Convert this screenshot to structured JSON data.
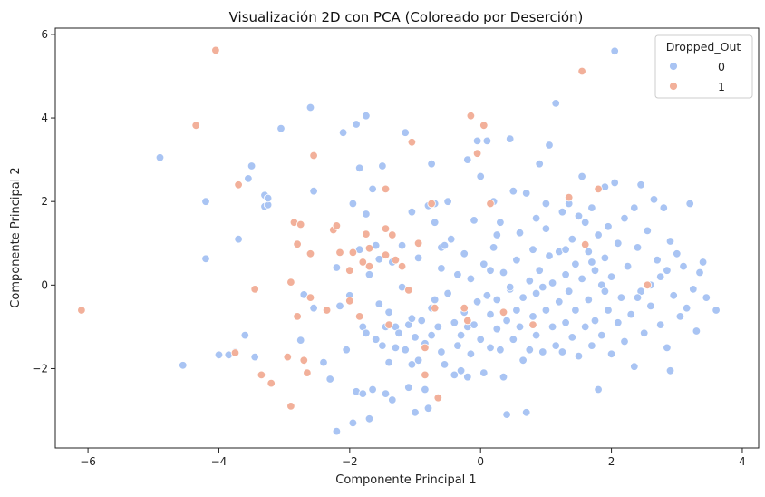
{
  "chart_data": {
    "type": "scatter",
    "title": "Visualización 2D con PCA (Coloreado por Deserción)",
    "xlabel": "Componente Principal 1",
    "ylabel": "Componente Principal 2",
    "xlim": [
      -6.5,
      4.25
    ],
    "ylim": [
      -3.9,
      6.15
    ],
    "xticks": [
      -6,
      -4,
      -2,
      0,
      2,
      4
    ],
    "yticks": [
      -2,
      0,
      2,
      4,
      6
    ],
    "grid": false,
    "legend": {
      "title": "Dropped_Out",
      "placement": "top-right"
    },
    "series": [
      {
        "name": "0",
        "color": "#a9c4f3",
        "points": [
          [
            -4.9,
            3.05
          ],
          [
            -4.55,
            -1.92
          ],
          [
            -4.2,
            2.0
          ],
          [
            -4.2,
            0.63
          ],
          [
            -4.0,
            -1.67
          ],
          [
            -3.85,
            -1.67
          ],
          [
            -3.75,
            -1.6
          ],
          [
            -3.7,
            1.1
          ],
          [
            -3.6,
            -1.2
          ],
          [
            -3.55,
            2.55
          ],
          [
            -3.5,
            2.85
          ],
          [
            -3.45,
            -1.72
          ],
          [
            -3.3,
            2.15
          ],
          [
            -3.3,
            1.88
          ],
          [
            -3.25,
            1.92
          ],
          [
            -3.25,
            2.08
          ],
          [
            -3.05,
            3.75
          ],
          [
            -2.75,
            -1.32
          ],
          [
            -2.7,
            -0.23
          ],
          [
            -2.6,
            4.25
          ],
          [
            -2.55,
            2.25
          ],
          [
            -2.55,
            -0.55
          ],
          [
            -2.4,
            -1.85
          ],
          [
            -2.3,
            -2.25
          ],
          [
            -2.2,
            -3.5
          ],
          [
            -2.2,
            0.42
          ],
          [
            -2.15,
            -0.5
          ],
          [
            -2.1,
            3.65
          ],
          [
            -2.05,
            -1.55
          ],
          [
            -2.0,
            -0.25
          ],
          [
            -1.95,
            -3.3
          ],
          [
            -1.95,
            1.95
          ],
          [
            -1.9,
            3.85
          ],
          [
            -1.9,
            -2.55
          ],
          [
            -1.85,
            2.8
          ],
          [
            -1.85,
            0.85
          ],
          [
            -1.8,
            -2.6
          ],
          [
            -1.8,
            -1.0
          ],
          [
            -1.75,
            1.7
          ],
          [
            -1.75,
            -1.15
          ],
          [
            -1.75,
            4.05
          ],
          [
            -1.7,
            -3.2
          ],
          [
            -1.7,
            0.25
          ],
          [
            -1.65,
            2.3
          ],
          [
            -1.65,
            -2.5
          ],
          [
            -1.6,
            -1.3
          ],
          [
            -1.6,
            0.95
          ],
          [
            -1.55,
            0.62
          ],
          [
            -1.55,
            -0.45
          ],
          [
            -1.5,
            -1.45
          ],
          [
            -1.5,
            2.85
          ],
          [
            -1.45,
            -2.6
          ],
          [
            -1.45,
            -1.0
          ],
          [
            -1.4,
            -0.65
          ],
          [
            -1.4,
            -1.85
          ],
          [
            -1.35,
            0.55
          ],
          [
            -1.35,
            -2.75
          ],
          [
            -1.3,
            -1.0
          ],
          [
            -1.3,
            -1.5
          ],
          [
            -1.25,
            -1.15
          ],
          [
            -1.2,
            0.95
          ],
          [
            -1.2,
            -0.05
          ],
          [
            -1.15,
            3.65
          ],
          [
            -1.15,
            -1.55
          ],
          [
            -1.1,
            -0.95
          ],
          [
            -1.1,
            -2.45
          ],
          [
            -1.05,
            1.75
          ],
          [
            -1.05,
            -0.8
          ],
          [
            -1.0,
            -3.05
          ],
          [
            -1.0,
            -1.25
          ],
          [
            -0.95,
            0.65
          ],
          [
            -0.95,
            -1.8
          ],
          [
            -0.9,
            -0.85
          ],
          [
            -0.85,
            -2.5
          ],
          [
            -0.85,
            -1.4
          ],
          [
            -0.8,
            -2.95
          ],
          [
            -0.8,
            1.9
          ],
          [
            -0.75,
            2.9
          ],
          [
            -0.75,
            -0.55
          ],
          [
            -0.75,
            -1.2
          ],
          [
            -0.7,
            1.95
          ],
          [
            -0.7,
            -0.35
          ],
          [
            -0.7,
            1.5
          ],
          [
            -0.65,
            -1.0
          ],
          [
            -0.6,
            -1.6
          ],
          [
            -0.6,
            0.4
          ],
          [
            -0.55,
            -1.9
          ],
          [
            -0.5,
            -0.2
          ],
          [
            -0.5,
            2.0
          ],
          [
            -0.45,
            1.1
          ],
          [
            -0.4,
            -2.15
          ],
          [
            -0.4,
            -0.9
          ],
          [
            -0.35,
            -1.45
          ],
          [
            -0.35,
            0.25
          ],
          [
            -0.3,
            -2.05
          ],
          [
            -0.3,
            -1.2
          ],
          [
            -0.25,
            -0.65
          ],
          [
            -0.2,
            -2.2
          ],
          [
            -0.2,
            3.0
          ],
          [
            -0.2,
            -1.0
          ],
          [
            -0.15,
            0.15
          ],
          [
            -0.15,
            -1.65
          ],
          [
            -0.1,
            1.55
          ],
          [
            -0.1,
            -0.95
          ],
          [
            -0.05,
            3.45
          ],
          [
            -0.05,
            -0.4
          ],
          [
            0.0,
            -1.3
          ],
          [
            0.0,
            2.6
          ],
          [
            0.05,
            -2.1
          ],
          [
            0.05,
            0.5
          ],
          [
            0.1,
            -0.25
          ],
          [
            0.1,
            3.45
          ],
          [
            0.15,
            -1.5
          ],
          [
            0.15,
            -0.7
          ],
          [
            0.2,
            2.0
          ],
          [
            0.2,
            0.9
          ],
          [
            0.25,
            -1.05
          ],
          [
            0.25,
            -0.35
          ],
          [
            0.3,
            -1.55
          ],
          [
            0.3,
            1.5
          ],
          [
            0.35,
            -2.2
          ],
          [
            0.35,
            0.3
          ],
          [
            0.4,
            -3.1
          ],
          [
            0.4,
            -0.85
          ],
          [
            0.45,
            3.5
          ],
          [
            0.45,
            -0.1
          ],
          [
            0.5,
            -1.3
          ],
          [
            0.5,
            2.25
          ],
          [
            0.55,
            0.6
          ],
          [
            0.55,
            -0.6
          ],
          [
            0.6,
            -1.0
          ],
          [
            0.6,
            1.25
          ],
          [
            0.65,
            -1.8
          ],
          [
            0.65,
            -0.3
          ],
          [
            0.7,
            -3.05
          ],
          [
            0.7,
            2.2
          ],
          [
            0.75,
            0.1
          ],
          [
            0.75,
            -1.55
          ],
          [
            0.8,
            0.85
          ],
          [
            0.8,
            -0.75
          ],
          [
            0.85,
            1.6
          ],
          [
            0.85,
            -1.2
          ],
          [
            0.9,
            0.35
          ],
          [
            0.9,
            2.9
          ],
          [
            0.95,
            -0.05
          ],
          [
            0.95,
            -1.6
          ],
          [
            1.0,
            1.35
          ],
          [
            1.0,
            -0.6
          ],
          [
            1.05,
            3.35
          ],
          [
            1.05,
            0.7
          ],
          [
            1.1,
            -1.0
          ],
          [
            1.1,
            0.05
          ],
          [
            1.15,
            4.35
          ],
          [
            1.15,
            -1.45
          ],
          [
            1.2,
            0.8
          ],
          [
            1.2,
            -0.4
          ],
          [
            1.25,
            1.75
          ],
          [
            1.25,
            -1.6
          ],
          [
            1.3,
            0.25
          ],
          [
            1.3,
            -0.9
          ],
          [
            1.35,
            1.95
          ],
          [
            1.35,
            -0.15
          ],
          [
            1.4,
            1.1
          ],
          [
            1.4,
            -1.25
          ],
          [
            1.45,
            0.5
          ],
          [
            1.45,
            -0.6
          ],
          [
            1.5,
            1.65
          ],
          [
            1.5,
            -1.7
          ],
          [
            1.55,
            2.6
          ],
          [
            1.55,
            0.15
          ],
          [
            1.6,
            -1.0
          ],
          [
            1.6,
            1.5
          ],
          [
            1.65,
            0.8
          ],
          [
            1.65,
            -0.35
          ],
          [
            1.7,
            -1.45
          ],
          [
            1.7,
            1.85
          ],
          [
            1.75,
            0.35
          ],
          [
            1.75,
            -0.85
          ],
          [
            1.8,
            1.2
          ],
          [
            1.8,
            -2.5
          ],
          [
            1.85,
            0.0
          ],
          [
            1.85,
            -1.2
          ],
          [
            1.9,
            2.35
          ],
          [
            1.9,
            0.65
          ],
          [
            1.95,
            -0.6
          ],
          [
            1.95,
            1.4
          ],
          [
            2.0,
            -1.65
          ],
          [
            2.0,
            0.2
          ],
          [
            2.05,
            2.45
          ],
          [
            2.05,
            5.6
          ],
          [
            2.1,
            -0.9
          ],
          [
            2.1,
            1.0
          ],
          [
            2.15,
            -0.3
          ],
          [
            2.2,
            1.6
          ],
          [
            2.2,
            -1.35
          ],
          [
            2.25,
            0.45
          ],
          [
            2.3,
            -0.7
          ],
          [
            2.35,
            1.85
          ],
          [
            2.35,
            -1.95
          ],
          [
            2.4,
            0.9
          ],
          [
            2.45,
            -0.15
          ],
          [
            2.45,
            2.4
          ],
          [
            2.5,
            -1.15
          ],
          [
            2.55,
            1.3
          ],
          [
            2.6,
            0.0
          ],
          [
            2.6,
            -0.5
          ],
          [
            2.65,
            2.05
          ],
          [
            2.7,
            0.6
          ],
          [
            2.75,
            -0.95
          ],
          [
            2.8,
            1.85
          ],
          [
            2.85,
            0.35
          ],
          [
            2.85,
            -1.5
          ],
          [
            2.9,
            -2.05
          ],
          [
            2.9,
            1.05
          ],
          [
            2.95,
            -0.25
          ],
          [
            3.0,
            0.75
          ],
          [
            3.05,
            -0.75
          ],
          [
            3.1,
            0.45
          ],
          [
            3.15,
            -0.55
          ],
          [
            3.2,
            1.95
          ],
          [
            3.25,
            -0.1
          ],
          [
            3.3,
            -1.1
          ],
          [
            3.35,
            0.3
          ],
          [
            3.4,
            0.55
          ],
          [
            3.45,
            -0.3
          ],
          [
            3.6,
            -0.6
          ],
          [
            -0.6,
            0.9
          ],
          [
            0.25,
            1.2
          ],
          [
            1.0,
            1.95
          ],
          [
            1.7,
            0.55
          ],
          [
            0.45,
            -0.05
          ],
          [
            -0.25,
            0.75
          ],
          [
            2.4,
            -0.3
          ],
          [
            1.3,
            0.85
          ],
          [
            0.85,
            -0.2
          ],
          [
            -0.55,
            0.95
          ],
          [
            0.15,
            0.35
          ],
          [
            1.9,
            -0.15
          ],
          [
            2.75,
            0.2
          ],
          [
            -1.05,
            -1.9
          ]
        ]
      },
      {
        "name": "1",
        "color": "#f2b09a",
        "points": [
          [
            -6.1,
            -0.6
          ],
          [
            -4.35,
            3.82
          ],
          [
            -4.05,
            5.62
          ],
          [
            -3.75,
            -1.62
          ],
          [
            -3.7,
            2.4
          ],
          [
            -3.45,
            -0.1
          ],
          [
            -3.35,
            -2.15
          ],
          [
            -3.2,
            -2.35
          ],
          [
            -2.95,
            -1.72
          ],
          [
            -2.9,
            0.07
          ],
          [
            -2.9,
            -2.9
          ],
          [
            -2.85,
            1.5
          ],
          [
            -2.8,
            -0.75
          ],
          [
            -2.8,
            0.98
          ],
          [
            -2.75,
            1.45
          ],
          [
            -2.7,
            -1.8
          ],
          [
            -2.65,
            -2.1
          ],
          [
            -2.6,
            -0.3
          ],
          [
            -2.6,
            0.75
          ],
          [
            -2.55,
            3.1
          ],
          [
            -2.35,
            -0.6
          ],
          [
            -2.25,
            1.32
          ],
          [
            -2.2,
            1.42
          ],
          [
            -2.15,
            0.78
          ],
          [
            -2.0,
            -0.38
          ],
          [
            -2.0,
            0.35
          ],
          [
            -1.95,
            0.78
          ],
          [
            -1.85,
            -0.75
          ],
          [
            -1.8,
            0.55
          ],
          [
            -1.75,
            1.22
          ],
          [
            -1.7,
            0.88
          ],
          [
            -1.7,
            0.45
          ],
          [
            -1.45,
            1.35
          ],
          [
            -1.45,
            2.3
          ],
          [
            -1.4,
            -0.95
          ],
          [
            -1.35,
            1.2
          ],
          [
            -1.3,
            0.6
          ],
          [
            -1.2,
            0.45
          ],
          [
            -1.1,
            -0.12
          ],
          [
            -1.05,
            3.42
          ],
          [
            -0.95,
            1.0
          ],
          [
            -0.85,
            -1.5
          ],
          [
            -0.85,
            -2.15
          ],
          [
            -0.75,
            1.95
          ],
          [
            -0.7,
            -0.55
          ],
          [
            -0.65,
            -2.7
          ],
          [
            -0.25,
            -0.55
          ],
          [
            -0.2,
            -0.85
          ],
          [
            -0.15,
            4.05
          ],
          [
            -0.05,
            3.15
          ],
          [
            0.05,
            3.82
          ],
          [
            0.15,
            1.95
          ],
          [
            0.35,
            -0.65
          ],
          [
            0.8,
            -0.95
          ],
          [
            1.35,
            2.1
          ],
          [
            1.55,
            5.12
          ],
          [
            1.6,
            0.97
          ],
          [
            1.8,
            2.3
          ],
          [
            2.55,
            0.0
          ],
          [
            -1.45,
            0.72
          ]
        ]
      }
    ]
  }
}
